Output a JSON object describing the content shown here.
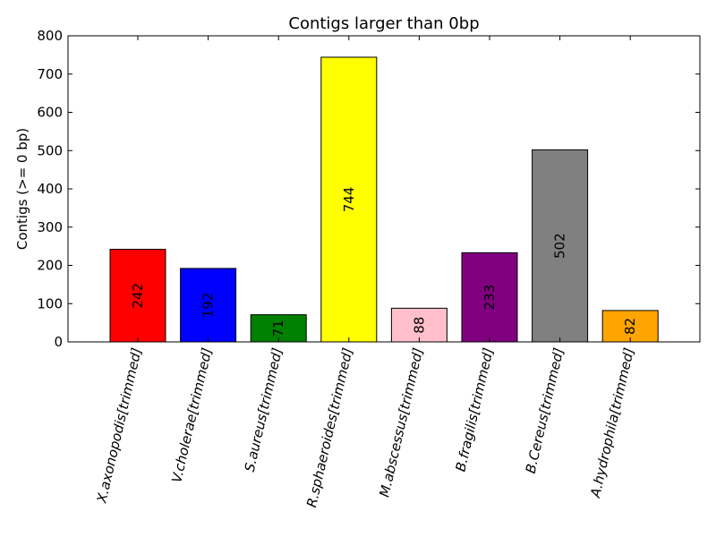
{
  "chart_data": {
    "type": "bar",
    "title": "Contigs larger than 0bp",
    "xlabel": "",
    "ylabel": "Contigs (>= 0 bp)",
    "categories": [
      "X.axonopodis[trimmed]",
      "V.cholerae[trimmed]",
      "S.aureus[trimmed]",
      "R.sphaeroides[trimmed]",
      "M.abscessus[trimmed]",
      "B.fragilis[trimmed]",
      "B.Cereus[trimmed]",
      "A.hydrophila[trimmed]"
    ],
    "values": [
      242,
      192,
      71,
      744,
      88,
      233,
      502,
      82
    ],
    "colors": [
      "#ff0000",
      "#0000ff",
      "#008000",
      "#ffff00",
      "#ffc0cb",
      "#800080",
      "#808080",
      "#ffa500"
    ],
    "ylim": [
      0,
      800
    ],
    "yticks": [
      0,
      100,
      200,
      300,
      400,
      500,
      600,
      700,
      800
    ],
    "grid": false,
    "legend": "none"
  }
}
